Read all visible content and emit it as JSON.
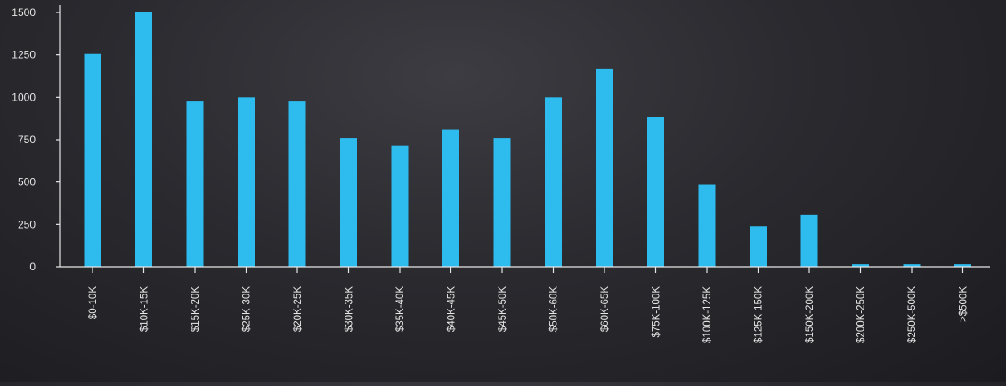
{
  "chart_data": {
    "type": "bar",
    "title": "",
    "xlabel": "",
    "ylabel": "",
    "ylim": [
      0,
      1500
    ],
    "yticks": [
      0,
      250,
      500,
      750,
      1000,
      1250,
      1500
    ],
    "grid": false,
    "categories": [
      "$0-10K",
      "$10K-15K",
      "$15K-20K",
      "$25K-30K",
      "$20K-25K",
      "$30K-35K",
      "$35K-40K",
      "$40K-45K",
      "$45K-50K",
      "$50K-60K",
      "$60K-65K",
      "$75K-100K",
      "$100K-125K",
      "$125K-150K",
      "$150K-200K",
      "$200K-250K",
      "$250K-500K",
      ">$500K"
    ],
    "values": [
      1255,
      1505,
      975,
      1000,
      975,
      760,
      715,
      810,
      760,
      1000,
      1165,
      885,
      485,
      240,
      305,
      15,
      15,
      15
    ],
    "colors": {
      "bar": "#2ebcef",
      "axis": "#e6e6e6",
      "text": "#e6e6e6"
    }
  }
}
